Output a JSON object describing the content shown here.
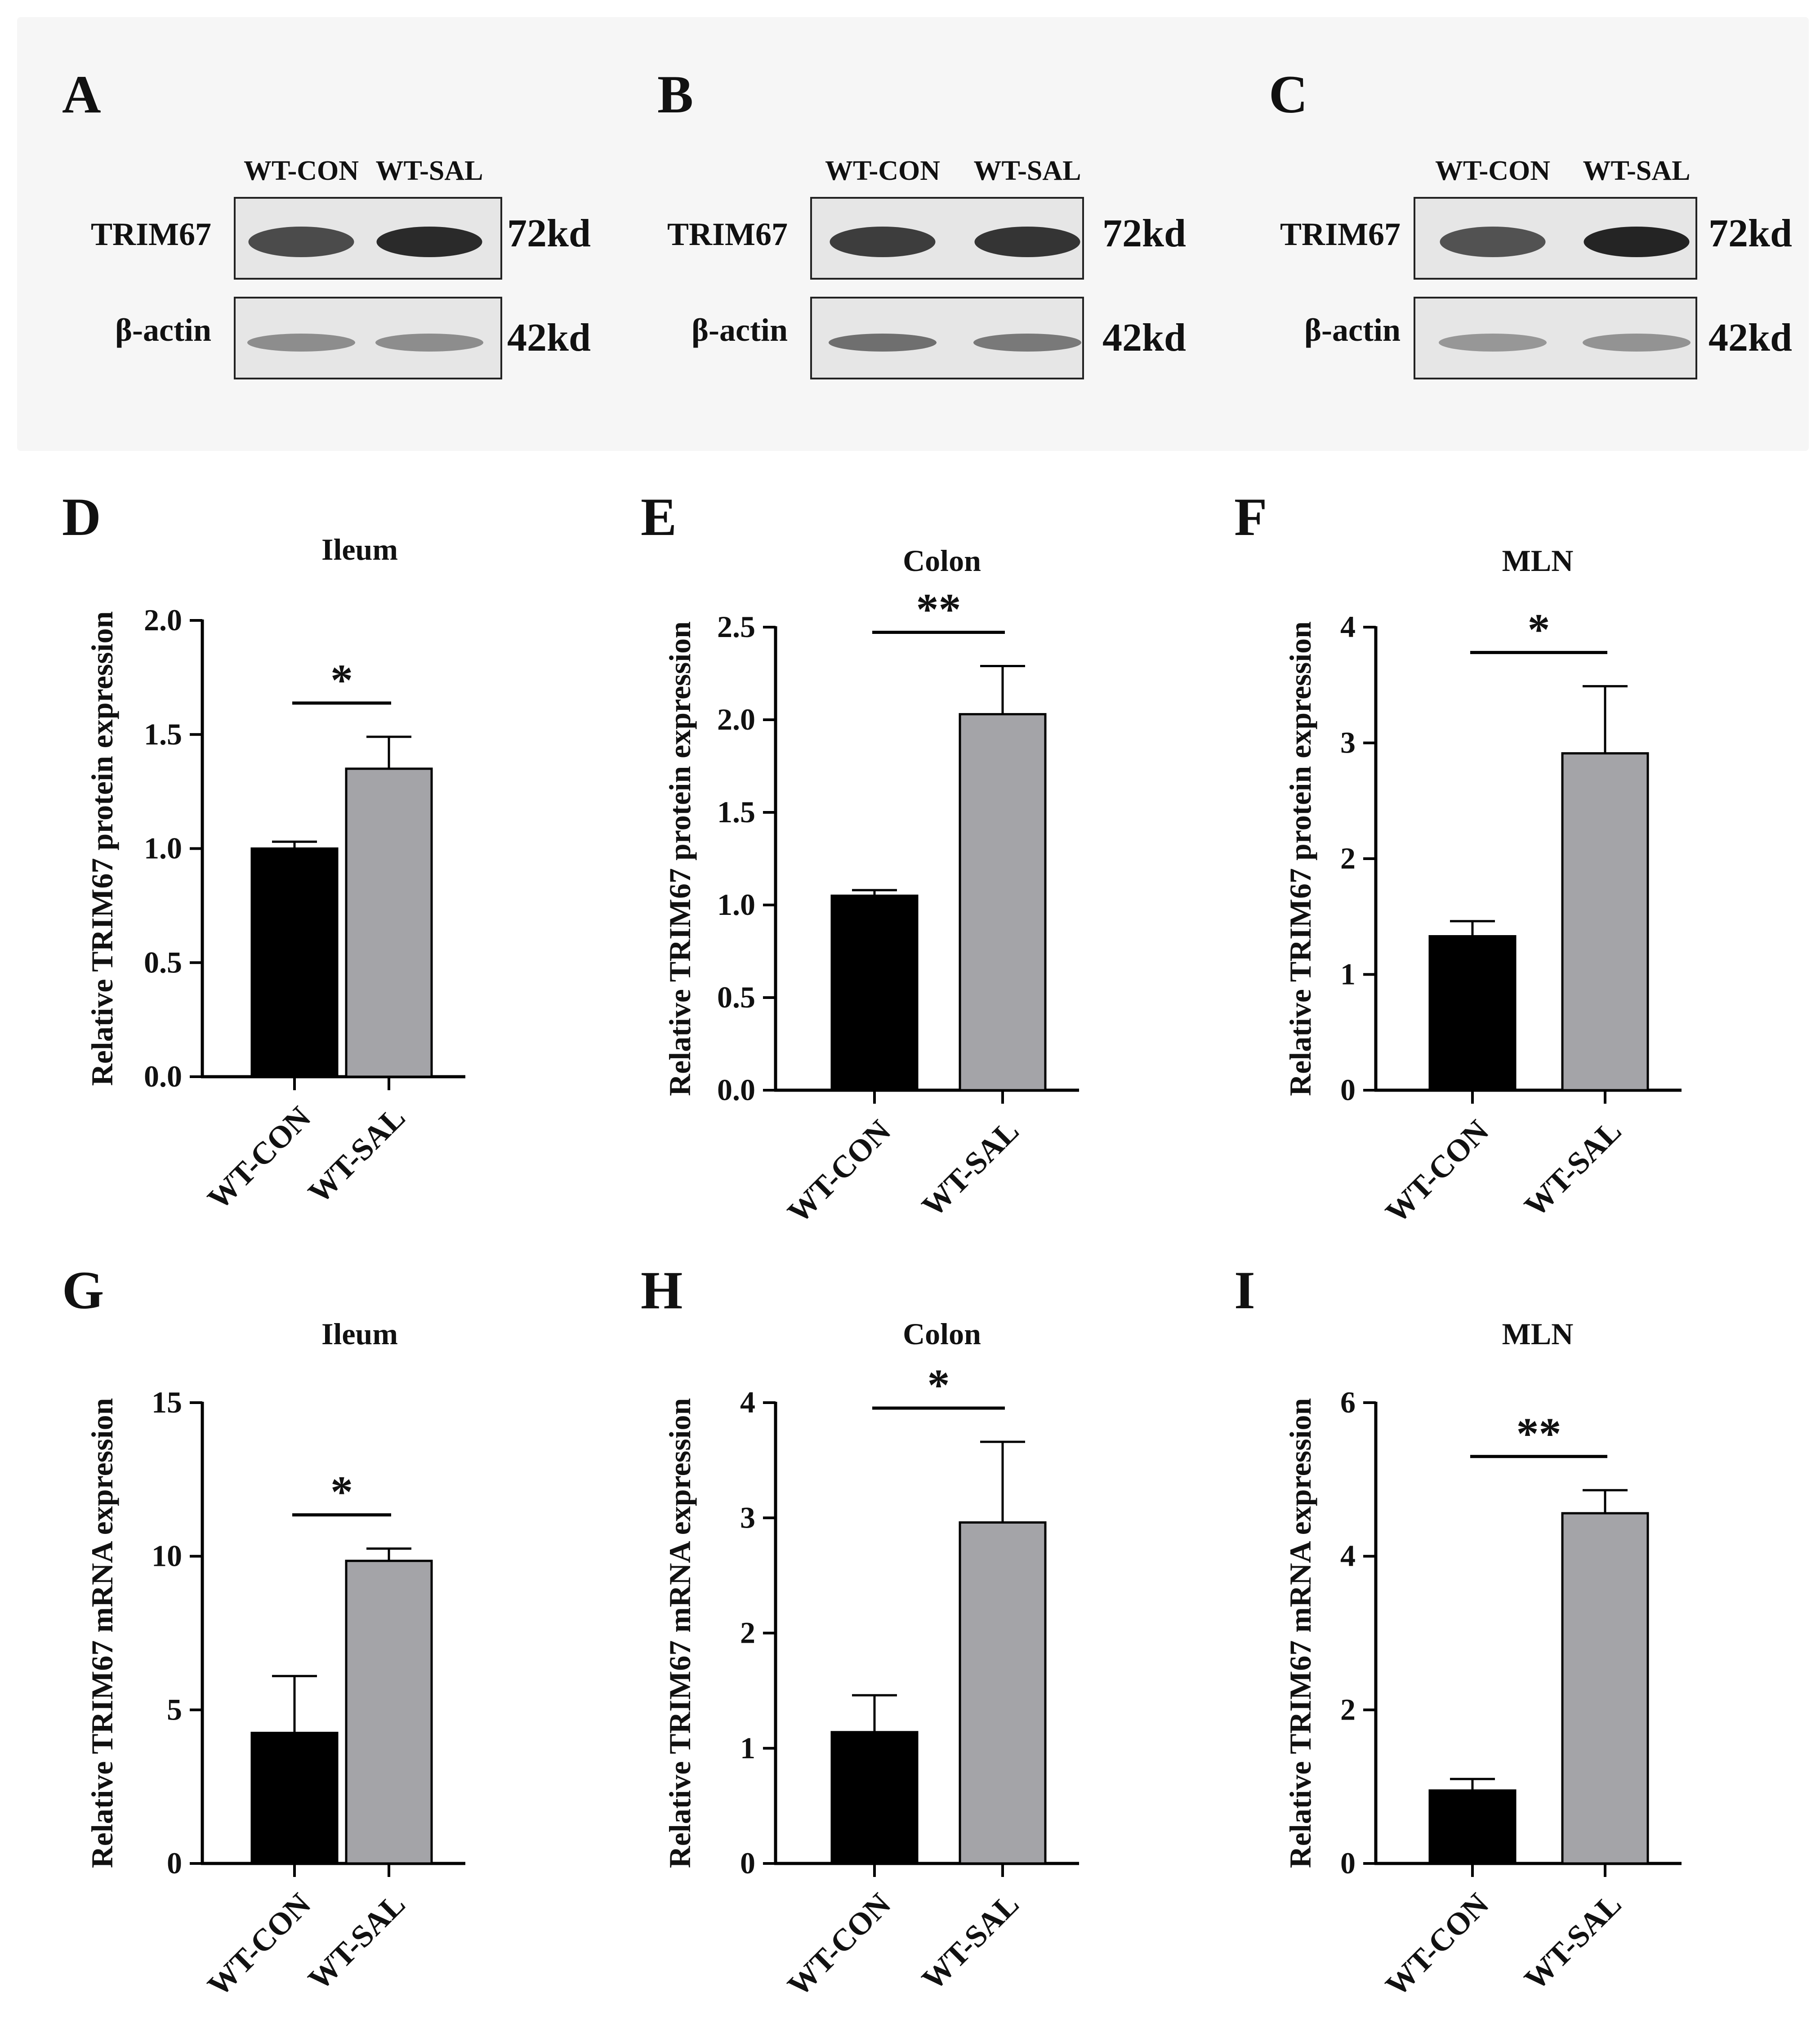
{
  "colors": {
    "control_bar": "#000000",
    "treatment_bar": "#a4a4a8",
    "blot_panel_bg": "#f6f6f6",
    "band_light": "#e6e6e6",
    "band_dark": "#0f0f0f",
    "actin_band": "#6a6a6a"
  },
  "blots": [
    {
      "letter": "A",
      "lanes": [
        "WT-CON",
        "WT-SAL"
      ],
      "rows": [
        {
          "protein": "TRIM67",
          "size": "72kd",
          "intensity": [
            0.78,
            0.95
          ]
        },
        {
          "protein": "β-actin",
          "size": "42kd",
          "intensity": [
            0.45,
            0.45
          ]
        }
      ]
    },
    {
      "letter": "B",
      "lanes": [
        "WT-CON",
        "WT-SAL"
      ],
      "rows": [
        {
          "protein": "TRIM67",
          "size": "72kd",
          "intensity": [
            0.85,
            0.9
          ]
        },
        {
          "protein": "β-actin",
          "size": "42kd",
          "intensity": [
            0.6,
            0.55
          ]
        }
      ]
    },
    {
      "letter": "C",
      "lanes": [
        "WT-CON",
        "WT-SAL"
      ],
      "rows": [
        {
          "protein": "TRIM67",
          "size": "72kd",
          "intensity": [
            0.75,
            0.98
          ]
        },
        {
          "protein": "β-actin",
          "size": "42kd",
          "intensity": [
            0.4,
            0.42
          ]
        }
      ]
    }
  ],
  "chart_data": [
    {
      "letter": "D",
      "type": "bar",
      "title": "Ileum",
      "ylabel": "Relative TRIM67 protein expression",
      "categories": [
        "WT-CON",
        "WT-SAL"
      ],
      "values": [
        1.0,
        1.35
      ],
      "errors": [
        0.03,
        0.14
      ],
      "ylim": [
        0,
        2.0
      ],
      "yticks": [
        0.0,
        0.5,
        1.0,
        1.5,
        2.0
      ],
      "tick_labels": [
        "0.0",
        "0.5",
        "1.0",
        "1.5",
        "2.0"
      ],
      "significance": "*"
    },
    {
      "letter": "E",
      "type": "bar",
      "title": "Colon",
      "ylabel": "Relative TRIM67 protein expression",
      "categories": [
        "WT-CON",
        "WT-SAL"
      ],
      "values": [
        1.05,
        2.03
      ],
      "errors": [
        0.03,
        0.26
      ],
      "ylim": [
        0,
        2.5
      ],
      "yticks": [
        0.0,
        0.5,
        1.0,
        1.5,
        2.0,
        2.5
      ],
      "tick_labels": [
        "0.0",
        "0.5",
        "1.0",
        "1.5",
        "2.0",
        "2.5"
      ],
      "significance": "**"
    },
    {
      "letter": "F",
      "type": "bar",
      "title": "MLN",
      "ylabel": "Relative TRIM67 protein expression",
      "categories": [
        "WT-CON",
        "WT-SAL"
      ],
      "values": [
        1.33,
        2.91
      ],
      "errors": [
        0.13,
        0.58
      ],
      "ylim": [
        0,
        4
      ],
      "yticks": [
        0,
        1,
        2,
        3,
        4
      ],
      "tick_labels": [
        "0",
        "1",
        "2",
        "3",
        "4"
      ],
      "significance": "*"
    },
    {
      "letter": "G",
      "type": "bar",
      "title": "Ileum",
      "ylabel": "Relative TRIM67 mRNA expression",
      "categories": [
        "WT-CON",
        "WT-SAL"
      ],
      "values": [
        4.25,
        9.85
      ],
      "errors": [
        1.85,
        0.4
      ],
      "ylim": [
        0,
        15
      ],
      "yticks": [
        0,
        5,
        10,
        15
      ],
      "tick_labels": [
        "0",
        "5",
        "10",
        "15"
      ],
      "significance": "*"
    },
    {
      "letter": "H",
      "type": "bar",
      "title": "Colon",
      "ylabel": "Relative TRIM67 mRNA expression",
      "categories": [
        "WT-CON",
        "WT-SAL"
      ],
      "values": [
        1.14,
        2.96
      ],
      "errors": [
        0.32,
        0.7
      ],
      "ylim": [
        0,
        4
      ],
      "yticks": [
        0,
        1,
        2,
        3,
        4
      ],
      "tick_labels": [
        "0",
        "1",
        "2",
        "3",
        "4"
      ],
      "significance": "*"
    },
    {
      "letter": "I",
      "type": "bar",
      "title": "MLN",
      "ylabel": "Relative TRIM67 mRNA expression",
      "categories": [
        "WT-CON",
        "WT-SAL"
      ],
      "values": [
        0.95,
        4.56
      ],
      "errors": [
        0.15,
        0.3
      ],
      "ylim": [
        0,
        6
      ],
      "yticks": [
        0,
        2,
        4,
        6
      ],
      "tick_labels": [
        "0",
        "2",
        "4",
        "6"
      ],
      "significance": "**"
    }
  ]
}
